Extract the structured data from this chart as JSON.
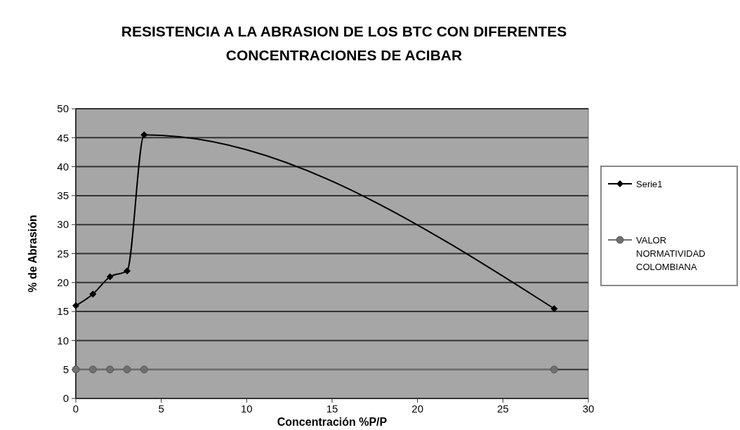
{
  "chart_data": {
    "type": "line",
    "title": "RESISTENCIA A LA ABRASION DE LOS BTC CON DIFERENTES CONCENTRACIONES DE ACIBAR",
    "xlabel": "Concentración %P/P",
    "ylabel": "% de Abrasión",
    "xlim": [
      0,
      30
    ],
    "xticks": [
      0,
      5,
      10,
      15,
      20,
      25,
      30
    ],
    "ylim": [
      0,
      50
    ],
    "yticks": [
      0,
      5,
      10,
      15,
      20,
      25,
      30,
      35,
      40,
      45,
      50
    ],
    "grid": "y",
    "legend": "right",
    "series": [
      {
        "name": "Serie1",
        "color": "#000000",
        "marker": "diamond",
        "x": [
          0,
          1,
          2,
          3,
          4,
          28
        ],
        "values": [
          16,
          18,
          21,
          22,
          45.5,
          15.5
        ]
      },
      {
        "name": "VALOR NORMATIVIDAD COLOMBIANA",
        "color": "#707070",
        "marker": "circle",
        "x": [
          0,
          1,
          2,
          3,
          4,
          28
        ],
        "values": [
          5,
          5,
          5,
          5,
          5,
          5
        ]
      }
    ]
  }
}
